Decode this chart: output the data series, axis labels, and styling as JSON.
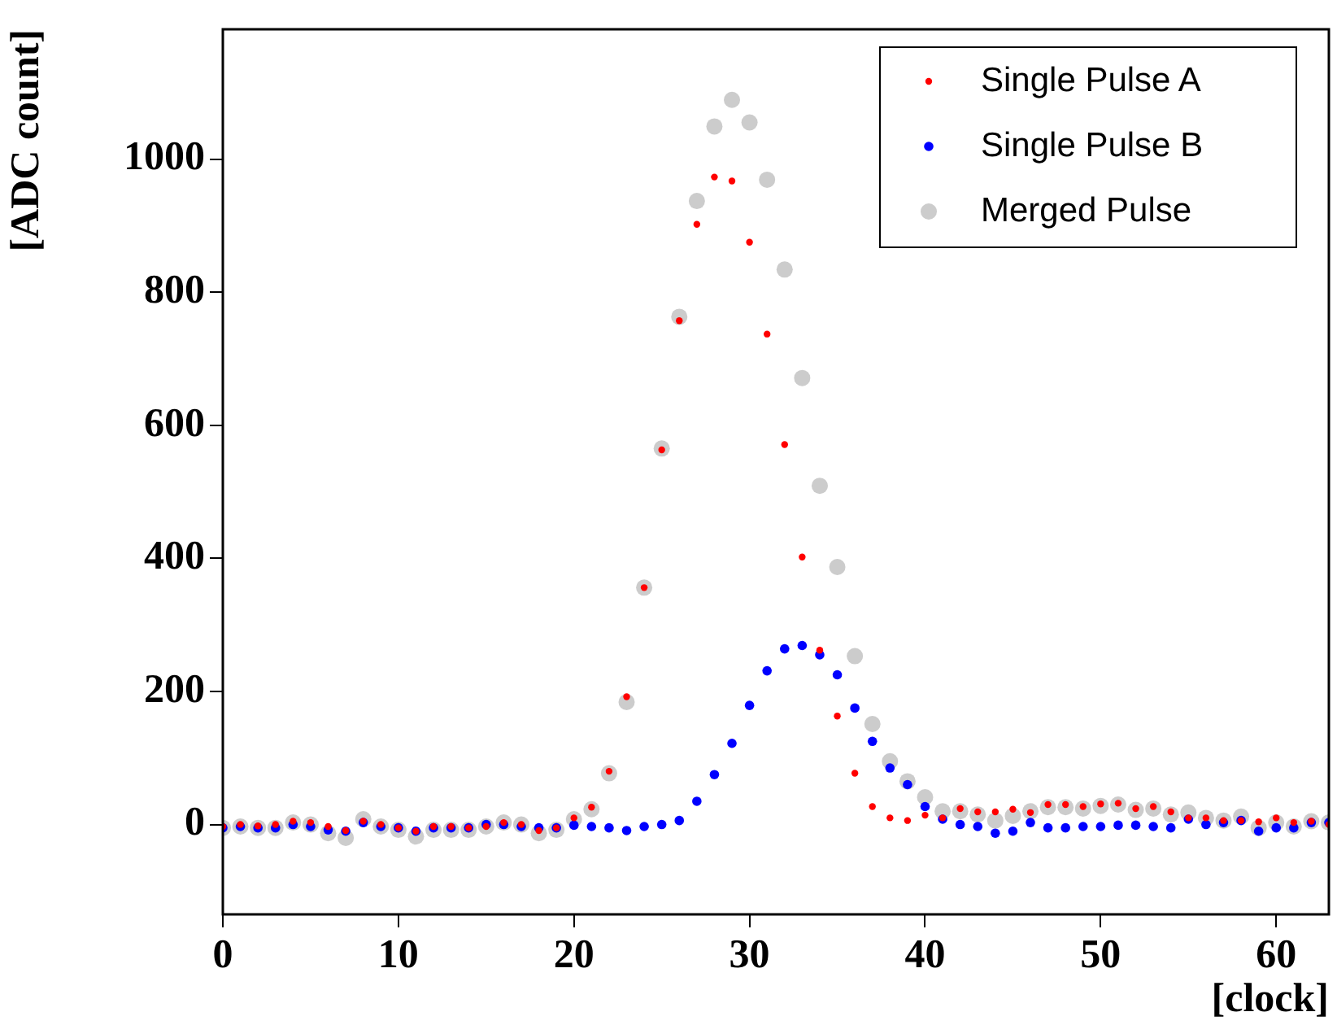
{
  "chart_data": {
    "type": "scatter",
    "xlabel": "[clock]",
    "ylabel": "[ADC count]",
    "x": [
      0,
      1,
      2,
      3,
      4,
      5,
      6,
      7,
      8,
      9,
      10,
      11,
      12,
      13,
      14,
      15,
      16,
      17,
      18,
      19,
      20,
      21,
      22,
      23,
      24,
      25,
      26,
      27,
      28,
      29,
      30,
      31,
      32,
      33,
      34,
      35,
      36,
      37,
      38,
      39,
      40,
      41,
      42,
      43,
      44,
      45,
      46,
      47,
      48,
      49,
      50,
      51,
      52,
      53,
      54,
      55,
      56,
      57,
      58,
      59,
      60,
      61,
      62,
      63
    ],
    "series": [
      {
        "name": "Single Pulse A",
        "color": "#ff0000",
        "values": [
          -3,
          0,
          -2,
          0,
          5,
          3,
          -3,
          -9,
          5,
          0,
          -5,
          -10,
          -3,
          -3,
          -5,
          -3,
          3,
          0,
          -9,
          -5,
          10,
          26,
          80,
          192,
          356,
          563,
          757,
          902,
          973,
          967,
          875,
          737,
          571,
          402,
          262,
          163,
          77,
          27,
          10,
          6,
          14,
          10,
          24,
          19,
          19,
          23,
          18,
          30,
          30,
          27,
          31,
          32,
          24,
          27,
          19,
          10,
          10,
          6,
          6,
          4,
          10,
          3,
          5,
          0
        ]
      },
      {
        "name": "Single Pulse B",
        "color": "#0000ff",
        "values": [
          -5,
          -3,
          -5,
          -5,
          0,
          -3,
          -8,
          -10,
          3,
          -3,
          -5,
          -10,
          -5,
          -5,
          -5,
          0,
          0,
          -3,
          -5,
          -5,
          -1,
          -3,
          -5,
          -9,
          -3,
          0,
          6,
          35,
          75,
          122,
          179,
          231,
          264,
          269,
          255,
          225,
          175,
          125,
          85,
          60,
          27,
          8,
          0,
          -3,
          -13,
          -10,
          3,
          -5,
          -5,
          -3,
          -3,
          -1,
          -1,
          -3,
          -5,
          8,
          0,
          3,
          6,
          -10,
          -5,
          -5,
          3,
          3
        ]
      },
      {
        "name": "Merged Pulse",
        "color": "#cccccc",
        "values": [
          -5,
          -3,
          -5,
          -5,
          3,
          0,
          -13,
          -20,
          8,
          -3,
          -8,
          -18,
          -8,
          -8,
          -8,
          -3,
          3,
          0,
          -13,
          -8,
          8,
          23,
          77,
          184,
          356,
          565,
          763,
          937,
          1049,
          1089,
          1055,
          969,
          834,
          671,
          509,
          387,
          253,
          151,
          95,
          65,
          41,
          20,
          20,
          15,
          6,
          13,
          20,
          26,
          26,
          24,
          28,
          30,
          22,
          24,
          15,
          18,
          10,
          6,
          12,
          -5,
          3,
          -3,
          5,
          3
        ]
      }
    ],
    "xlim": [
      0,
      63
    ],
    "xticks": [
      0,
      10,
      20,
      30,
      40,
      50,
      60
    ],
    "ylim": [
      -135,
      1195
    ],
    "yticks": [
      0,
      200,
      400,
      600,
      800,
      1000
    ],
    "grid": false,
    "legend": "top right",
    "marker": "circle"
  }
}
